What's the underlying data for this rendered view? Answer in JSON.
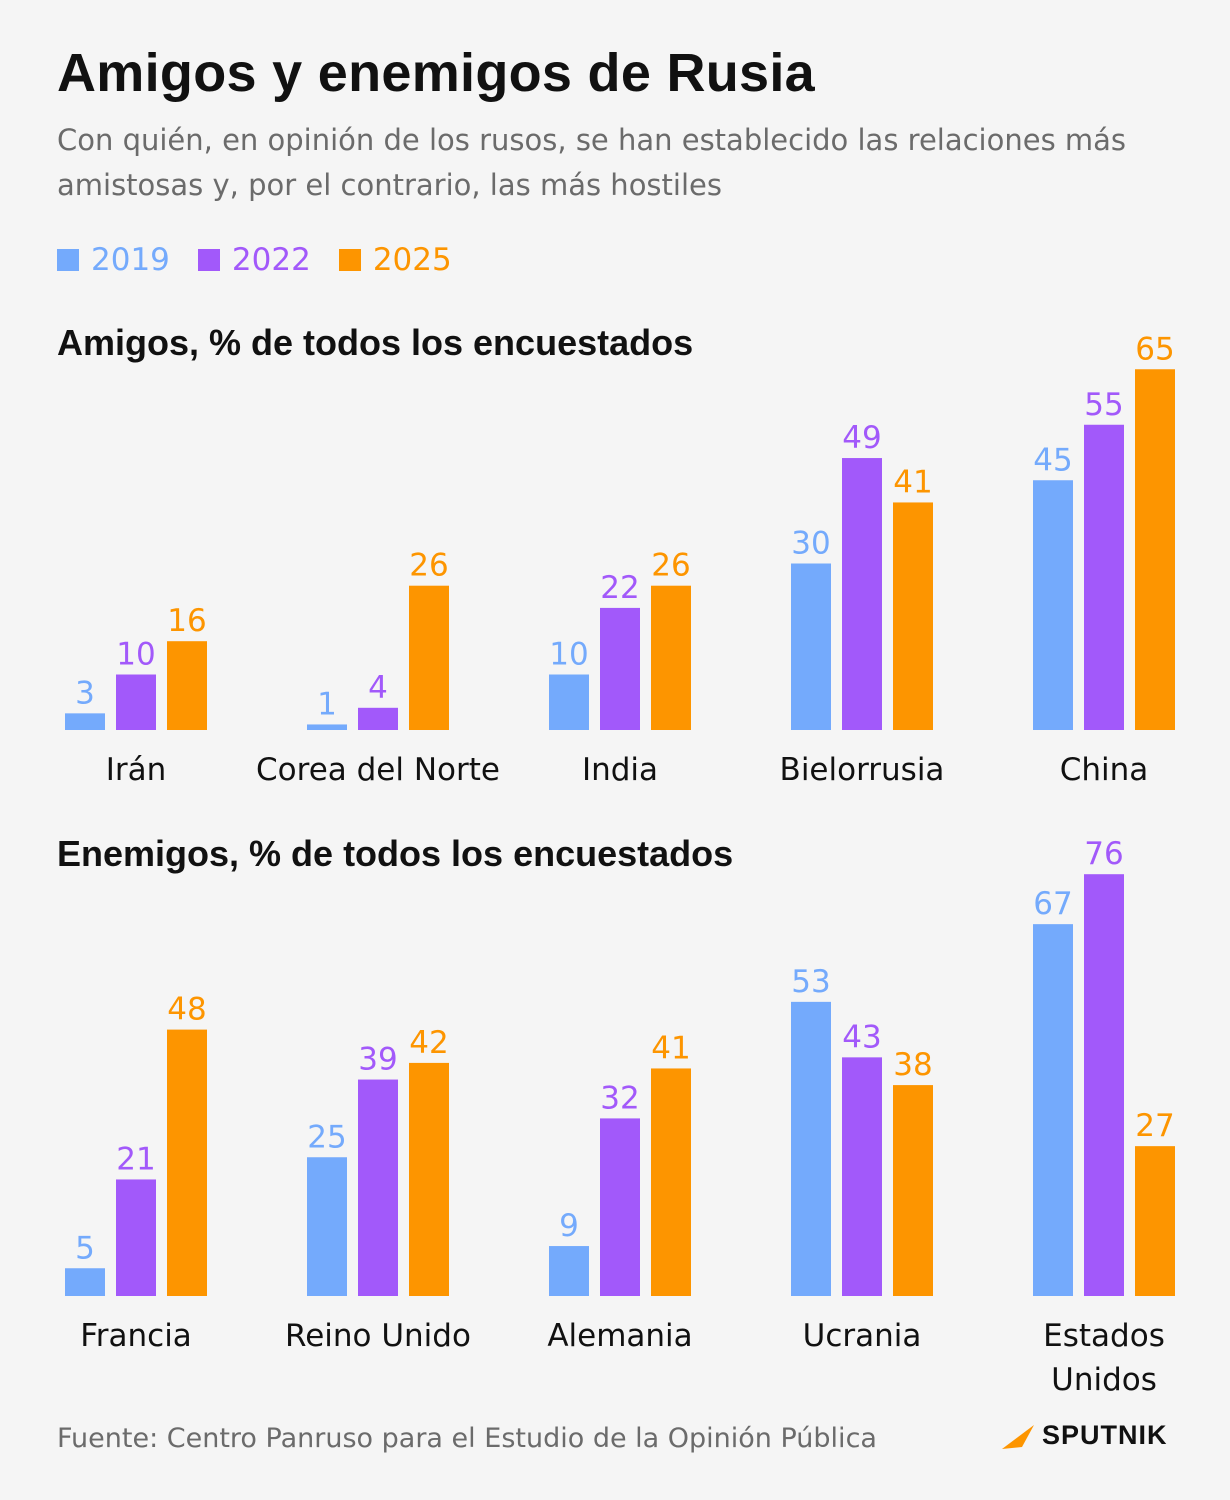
{
  "header": {
    "title": "Amigos y enemigos de Rusia",
    "subtitle": "Con quién, en opinión de los rusos, se han establecido las relaciones más amistosas y, por el contrario, las más hostiles"
  },
  "legend": [
    {
      "label": "2019",
      "color": "#74aafc"
    },
    {
      "label": "2022",
      "color": "#a259fa"
    },
    {
      "label": "2025",
      "color": "#fd9500"
    }
  ],
  "chart_data": [
    {
      "type": "bar",
      "title": "Amigos, % de todos los encuestados",
      "categories": [
        "Irán",
        "Corea del Norte",
        "India",
        "Bielorrusia",
        "China"
      ],
      "series": [
        {
          "name": "2019",
          "values": [
            3,
            1,
            10,
            30,
            45
          ]
        },
        {
          "name": "2022",
          "values": [
            10,
            4,
            22,
            49,
            55
          ]
        },
        {
          "name": "2025",
          "values": [
            16,
            26,
            26,
            41,
            65
          ]
        }
      ],
      "ylim": [
        0,
        65
      ]
    },
    {
      "type": "bar",
      "title": "Enemigos, % de todos los encuestados",
      "categories": [
        "Francia",
        "Reino Unido",
        "Alemania",
        "Ucrania",
        "Estados Unidos"
      ],
      "category_lines": [
        [
          "Francia"
        ],
        [
          "Reino Unido"
        ],
        [
          "Alemania"
        ],
        [
          "Ucrania"
        ],
        [
          "Estados",
          "Unidos"
        ]
      ],
      "series": [
        {
          "name": "2019",
          "values": [
            5,
            25,
            9,
            53,
            67
          ]
        },
        {
          "name": "2022",
          "values": [
            21,
            39,
            32,
            43,
            76
          ]
        },
        {
          "name": "2025",
          "values": [
            48,
            42,
            41,
            38,
            27
          ]
        }
      ],
      "ylim": [
        0,
        76
      ]
    }
  ],
  "footer": {
    "source": "Fuente: Centro Panruso para el Estudio de la Opinión Pública",
    "logo": "SPUTNIK"
  }
}
